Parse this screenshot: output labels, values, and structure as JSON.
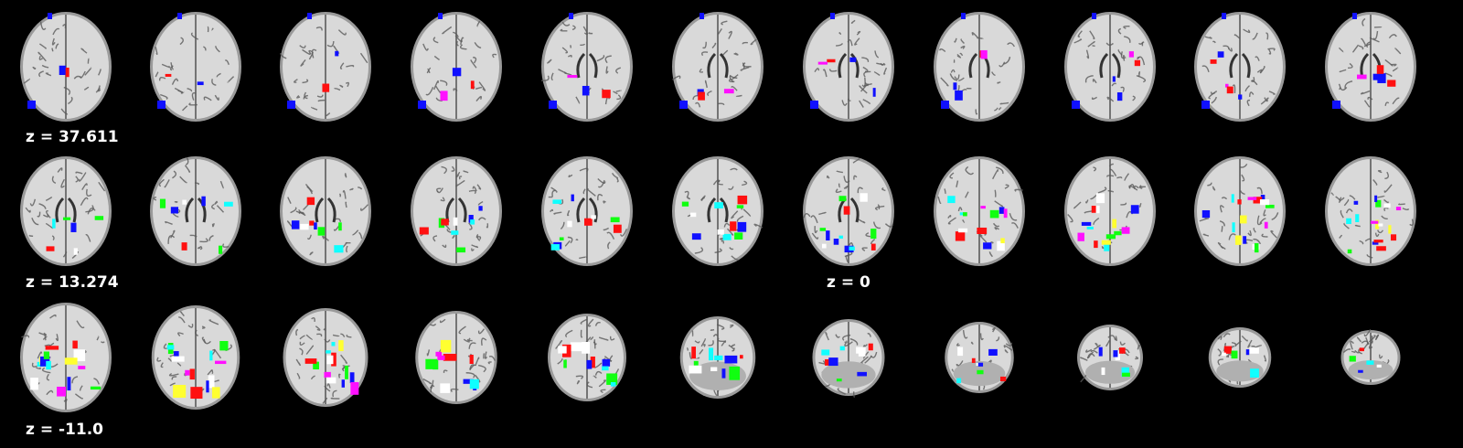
{
  "figure": {
    "rows": [
      {
        "label": "z = 37.611",
        "slices": 11
      },
      {
        "label": "z = 13.274",
        "slices": 11
      },
      {
        "label": "z = -11.0",
        "slices": 11
      }
    ],
    "inline_label": "z = 0",
    "colors": {
      "background": "#000000",
      "cortex_light": "#d9d9d9",
      "cortex_mid": "#9a9a9a",
      "cortex_dark": "#5a5a5a",
      "overlay_blue": "#1010ff",
      "overlay_red": "#ff1010",
      "overlay_green": "#10ff10",
      "overlay_cyan": "#10ffff",
      "overlay_magenta": "#ff10ff",
      "overlay_white": "#ffffff",
      "overlay_yellow": "#ffff30"
    }
  }
}
